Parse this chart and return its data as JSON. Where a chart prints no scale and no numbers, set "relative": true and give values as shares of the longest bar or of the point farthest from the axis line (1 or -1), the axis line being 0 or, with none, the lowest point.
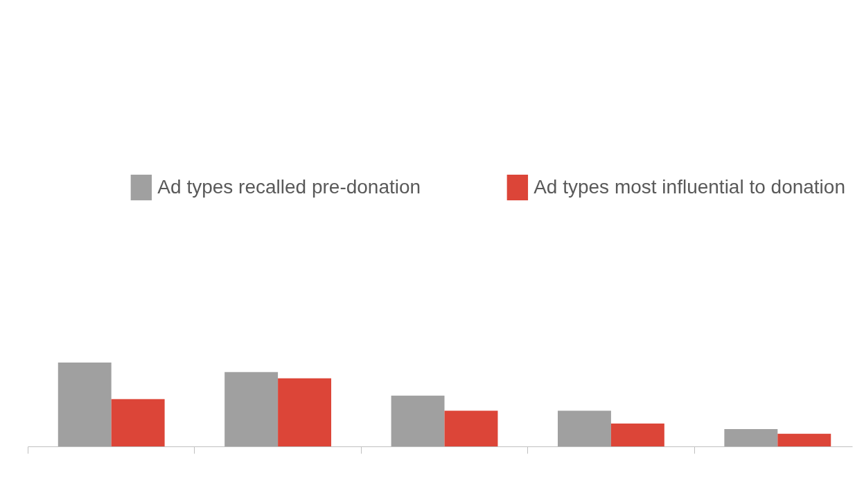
{
  "chart_data": {
    "type": "bar",
    "relative": true,
    "categories": [
      null,
      null,
      null,
      null,
      null
    ],
    "series": [
      {
        "name": "Ad types recalled pre-donation",
        "color": "#a0a0a0",
        "values": [
          1,
          0.887,
          0.607,
          0.427,
          0.21
        ]
      },
      {
        "name": "Ad types most influential to donation",
        "color": "#dc4538",
        "values": [
          0.565,
          0.812,
          0.427,
          0.276,
          0.155
        ]
      }
    ],
    "legend": "top",
    "grid": false
  }
}
